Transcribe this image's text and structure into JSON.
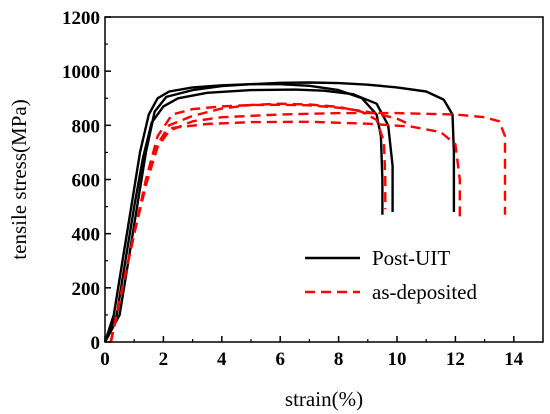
{
  "chart_data": {
    "type": "line",
    "title": "",
    "xlabel": "strain(%)",
    "ylabel": "tensile stress(MPa)",
    "xlim": [
      0,
      15
    ],
    "ylim": [
      0,
      1200
    ],
    "xticks": [
      0,
      2,
      4,
      6,
      8,
      10,
      12,
      14
    ],
    "yticks": [
      0,
      200,
      400,
      600,
      800,
      1000,
      1200
    ],
    "grid": false,
    "legend_position": "bottom-right",
    "series": [
      {
        "name": "Post-UIT",
        "color": "#000000",
        "dash": "solid",
        "curves": [
          [
            [
              0,
              0
            ],
            [
              0.3,
              100
            ],
            [
              0.6,
              300
            ],
            [
              0.9,
              500
            ],
            [
              1.2,
              700
            ],
            [
              1.5,
              840
            ],
            [
              1.8,
              900
            ],
            [
              2.2,
              925
            ],
            [
              3,
              940
            ],
            [
              4,
              948
            ],
            [
              5,
              952
            ],
            [
              6,
              952
            ],
            [
              7,
              946
            ],
            [
              8,
              930
            ],
            [
              8.8,
              900
            ],
            [
              9.3,
              840
            ],
            [
              9.45,
              760
            ],
            [
              9.5,
              600
            ],
            [
              9.5,
              470
            ]
          ],
          [
            [
              0,
              0
            ],
            [
              0.4,
              100
            ],
            [
              0.7,
              300
            ],
            [
              1.0,
              500
            ],
            [
              1.3,
              680
            ],
            [
              1.6,
              810
            ],
            [
              2.0,
              870
            ],
            [
              2.5,
              900
            ],
            [
              3.5,
              920
            ],
            [
              5,
              930
            ],
            [
              6.5,
              932
            ],
            [
              7.5,
              928
            ],
            [
              8.5,
              915
            ],
            [
              9.3,
              880
            ],
            [
              9.7,
              800
            ],
            [
              9.85,
              650
            ],
            [
              9.85,
              480
            ]
          ],
          [
            [
              0,
              0
            ],
            [
              0.5,
              100
            ],
            [
              0.8,
              300
            ],
            [
              1.1,
              500
            ],
            [
              1.4,
              700
            ],
            [
              1.7,
              850
            ],
            [
              2.1,
              905
            ],
            [
              3,
              930
            ],
            [
              4,
              945
            ],
            [
              5,
              952
            ],
            [
              6,
              957
            ],
            [
              7,
              958
            ],
            [
              8,
              956
            ],
            [
              9,
              950
            ],
            [
              10,
              940
            ],
            [
              11,
              925
            ],
            [
              11.6,
              895
            ],
            [
              11.9,
              840
            ],
            [
              11.95,
              700
            ],
            [
              11.95,
              480
            ]
          ]
        ]
      },
      {
        "name": "as-deposited",
        "color": "#ff0000",
        "dash": "dashed",
        "curves": [
          [
            [
              0.2,
              0
            ],
            [
              0.6,
              200
            ],
            [
              1.0,
              400
            ],
            [
              1.4,
              580
            ],
            [
              1.8,
              730
            ],
            [
              2.2,
              800
            ],
            [
              3,
              835
            ],
            [
              4,
              862
            ],
            [
              5,
              875
            ],
            [
              6,
              880
            ],
            [
              7,
              877
            ],
            [
              8,
              868
            ],
            [
              8.8,
              850
            ],
            [
              9.3,
              820
            ],
            [
              9.55,
              740
            ],
            [
              9.6,
              600
            ],
            [
              9.6,
              490
            ]
          ],
          [
            [
              0.2,
              0
            ],
            [
              0.6,
              200
            ],
            [
              1.0,
              400
            ],
            [
              1.4,
              580
            ],
            [
              1.8,
              730
            ],
            [
              2.3,
              790
            ],
            [
              3.5,
              805
            ],
            [
              5,
              812
            ],
            [
              7,
              813
            ],
            [
              9,
              806
            ],
            [
              10.5,
              795
            ],
            [
              11.5,
              775
            ],
            [
              12.0,
              730
            ],
            [
              12.15,
              600
            ],
            [
              12.15,
              450
            ]
          ],
          [
            [
              0.2,
              0
            ],
            [
              0.6,
              200
            ],
            [
              1.0,
              400
            ],
            [
              1.4,
              580
            ],
            [
              1.8,
              720
            ],
            [
              2.2,
              780
            ],
            [
              3,
              815
            ],
            [
              4,
              830
            ],
            [
              6,
              840
            ],
            [
              8,
              845
            ],
            [
              10,
              845
            ],
            [
              12,
              840
            ],
            [
              13,
              830
            ],
            [
              13.5,
              815
            ],
            [
              13.7,
              760
            ],
            [
              13.7,
              600
            ],
            [
              13.7,
              470
            ]
          ],
          [
            [
              0.2,
              0
            ],
            [
              0.6,
              200
            ],
            [
              1.0,
              400
            ],
            [
              1.4,
              600
            ],
            [
              1.8,
              760
            ],
            [
              2.3,
              840
            ],
            [
              3,
              860
            ],
            [
              4,
              870
            ],
            [
              5,
              875
            ],
            [
              6,
              876
            ],
            [
              7,
              874
            ],
            [
              8,
              865
            ],
            [
              9,
              850
            ],
            [
              10,
              825
            ],
            [
              10.5,
              800
            ]
          ]
        ]
      }
    ]
  }
}
